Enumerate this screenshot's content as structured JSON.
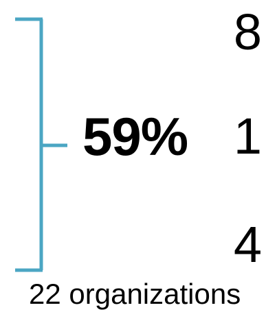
{
  "accent_color": "#4BA6C3",
  "highlight_percent": "59%",
  "stack_values": [
    "8",
    "1",
    "4"
  ],
  "caption": "22 organizations"
}
